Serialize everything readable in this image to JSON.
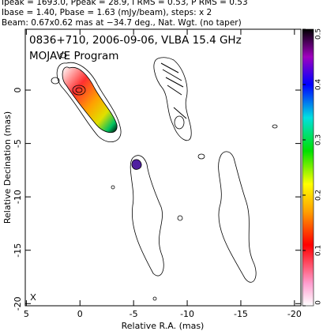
{
  "chart_data": {
    "type": "contour",
    "header": [
      "Ipeak = 1693.0, Ppeak = 28.9, I RMS = 0.53, P RMS = 0.53",
      "Ibase = 1.40, Pbase = 1.63 (mJy/beam), steps: x 2",
      "Beam: 0.67x0.62 mas at −34.7 deg., Nat. Wgt. (no taper)"
    ],
    "title": "0836+710, 2006-09-06, VLBA 15.4 GHz",
    "subtitle": "MOJAVE Program",
    "xlabel": "Relative R.A. (mas)",
    "ylabel": "Relative Decination (mas)",
    "xlim": [
      5.1,
      -20.6
    ],
    "ylim": [
      -20.2,
      5.7
    ],
    "xticks": [
      5,
      0,
      -5,
      -10,
      -15,
      -20
    ],
    "yticks": [
      0,
      -5,
      -10,
      -15,
      -20
    ],
    "colorbar": {
      "lim": [
        0,
        0.5
      ],
      "ticks": [
        0,
        0.1,
        0.2,
        0.3,
        0.4,
        0.5
      ]
    }
  }
}
